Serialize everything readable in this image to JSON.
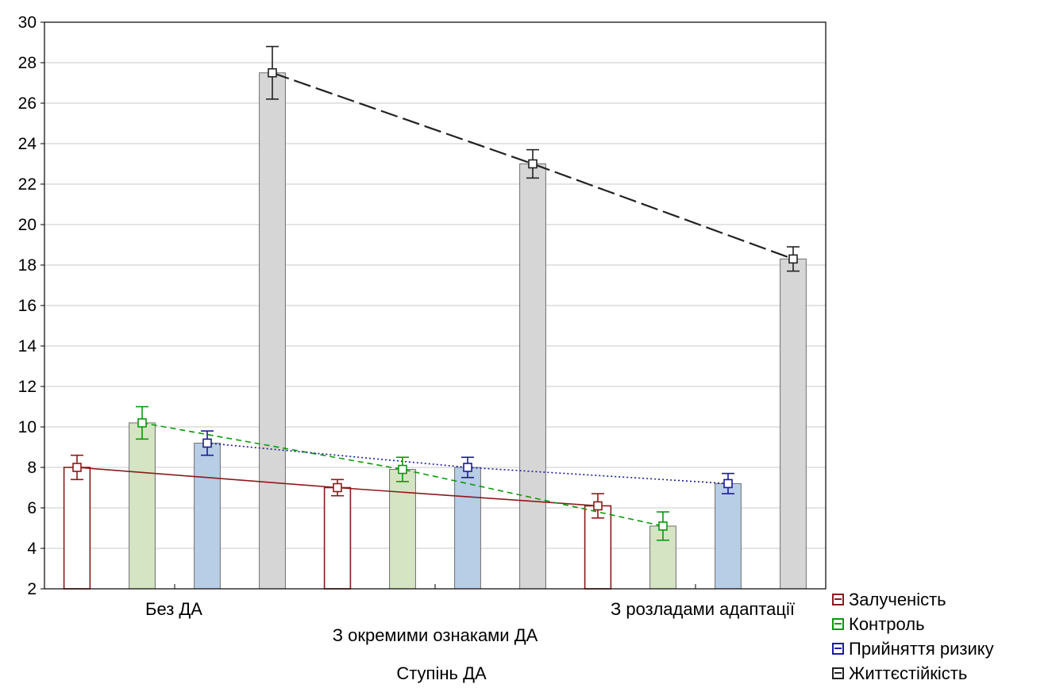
{
  "chart_data": {
    "type": "bar",
    "categories": [
      "Без ДА",
      "З окремими ознаками ДА",
      "З розладами адаптації"
    ],
    "xlabel": "Ступінь ДА",
    "ylabel": "",
    "ylim": [
      2,
      30
    ],
    "yticks": [
      2,
      4,
      6,
      8,
      10,
      12,
      14,
      16,
      18,
      20,
      22,
      24,
      26,
      28,
      30
    ],
    "grid": true,
    "legend_position": "bottom-right",
    "series": [
      {
        "name": "Залученість",
        "values": [
          8.0,
          7.0,
          6.1
        ],
        "err": [
          0.6,
          0.4,
          0.6
        ],
        "fill": "#ffffff",
        "color": "#8b1a1a",
        "line_style": "solid"
      },
      {
        "name": "Контроль",
        "values": [
          10.2,
          7.9,
          5.1
        ],
        "err": [
          0.8,
          0.6,
          0.7
        ],
        "fill": "#d5e4c3",
        "color": "#0a9a0a",
        "line_style": "dashed"
      },
      {
        "name": "Прийняття ризику",
        "values": [
          9.2,
          8.0,
          7.2
        ],
        "err": [
          0.6,
          0.5,
          0.5
        ],
        "fill": "#b8cde6",
        "color": "#1a1aa0",
        "line_style": "dotted"
      },
      {
        "name": "Життєстійкість",
        "values": [
          27.5,
          23.0,
          18.3
        ],
        "err": [
          1.3,
          0.7,
          0.6
        ],
        "fill": "#d6d6d6",
        "color": "#222222",
        "line_style": "longdash"
      }
    ]
  }
}
